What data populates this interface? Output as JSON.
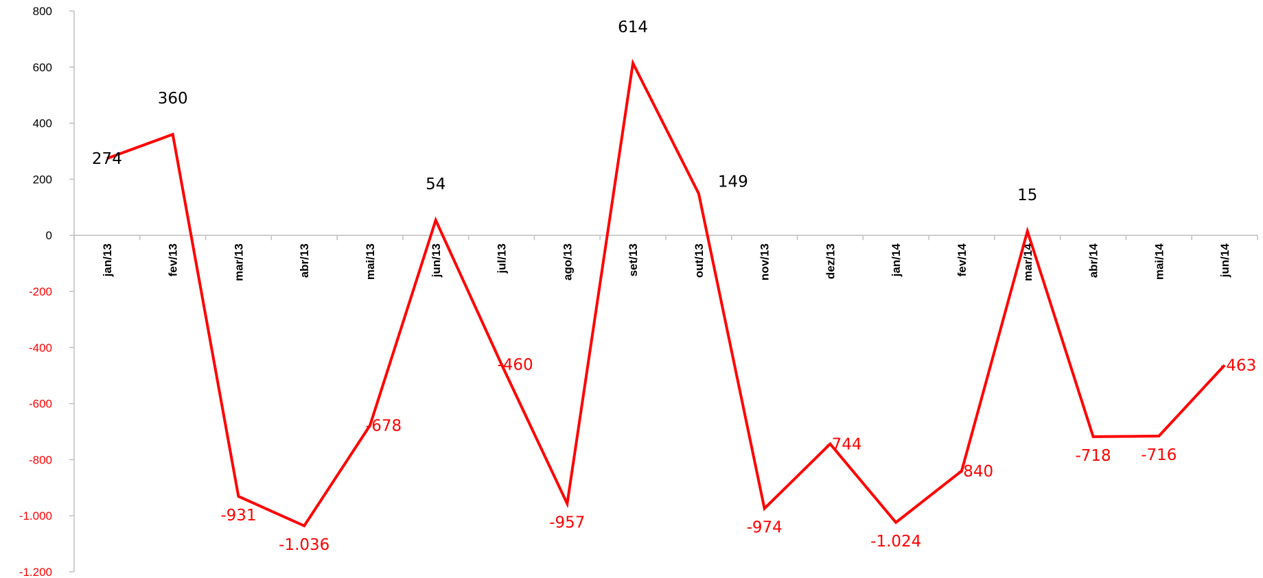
{
  "chart_data": {
    "type": "line",
    "title": "",
    "xlabel": "",
    "ylabel": "",
    "categories": [
      "jan/13",
      "fev/13",
      "mar/13",
      "abr/13",
      "mai/13",
      "jun/13",
      "jul/13",
      "ago/13",
      "set/13",
      "out/13",
      "nov/13",
      "dez/13",
      "jan/14",
      "fev/14",
      "mar/14",
      "abr/14",
      "mai/14",
      "jun/14"
    ],
    "series": [
      {
        "values": [
          274,
          360,
          -931,
          -1036,
          -678,
          54,
          -460,
          -957,
          614,
          149,
          -974,
          -744,
          -1024,
          -840,
          15,
          -718,
          -716,
          -463
        ],
        "data_labels": [
          "274",
          "360",
          "-931",
          "-1.036",
          "-678",
          "54",
          "-460",
          "-957",
          "614",
          "149",
          "-974",
          "-744",
          "-1.024",
          "-840",
          "15",
          "-718",
          "-716",
          "-463"
        ],
        "color": "#ff0000"
      }
    ],
    "ylim": [
      -1200,
      800
    ],
    "yticks": [
      800,
      600,
      400,
      200,
      0,
      -200,
      -400,
      -600,
      -800,
      -1000,
      -1200
    ],
    "ytick_labels": [
      "800",
      "600",
      "400",
      "200",
      "0",
      "-200",
      "-400",
      "-600",
      "-800",
      "-1.000",
      "-1.200"
    ],
    "grid": false,
    "legend": "none",
    "colors": {
      "line": "#ff0000",
      "positive_label": "#000000",
      "negative_label": "#ff0000",
      "axis": "#bfbfbf"
    }
  }
}
